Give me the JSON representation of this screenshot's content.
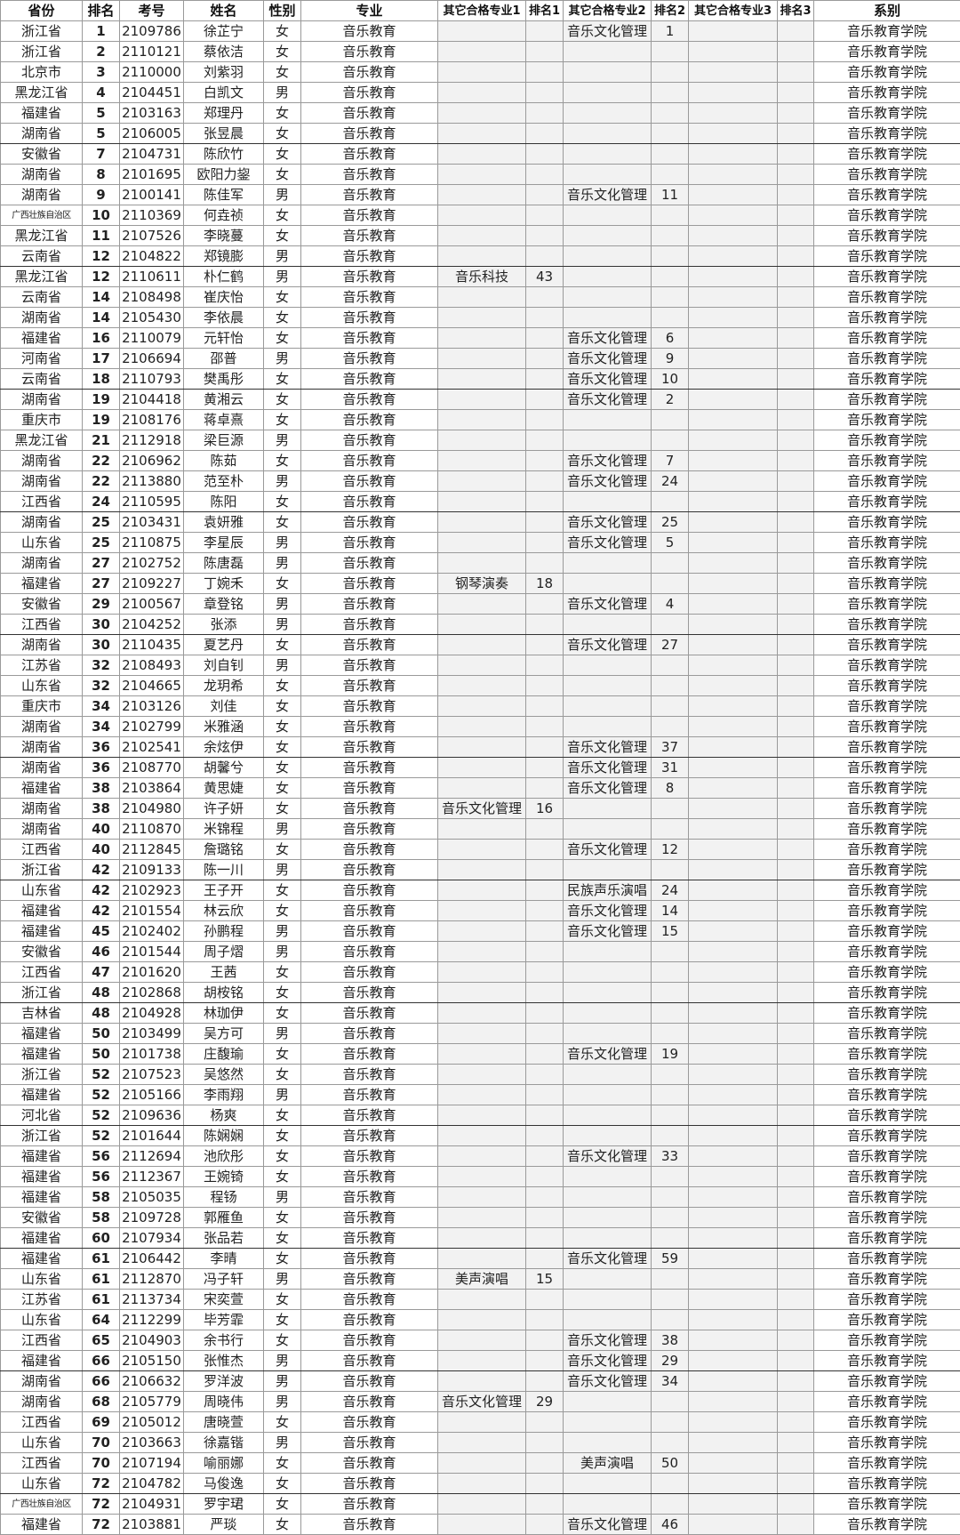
{
  "headers": [
    "省份",
    "排名",
    "考号",
    "姓名",
    "性别",
    "专业",
    "其它合格专业1",
    "排名1",
    "其它合格专业2",
    "排名2",
    "其它合格专业3",
    "排名3",
    "系别"
  ],
  "colors": {
    "grid": "#9a9a9a",
    "gray_cells": "#f2f2f2"
  },
  "rows": [
    [
      "浙江省",
      "1",
      "2109786",
      "徐芷宁",
      "女",
      "音乐教育",
      "",
      "",
      "音乐文化管理",
      "1",
      "",
      "",
      "音乐教育学院"
    ],
    [
      "浙江省",
      "2",
      "2110121",
      "蔡依洁",
      "女",
      "音乐教育",
      "",
      "",
      "",
      "",
      "",
      "",
      "音乐教育学院"
    ],
    [
      "北京市",
      "3",
      "2110000",
      "刘紫羽",
      "女",
      "音乐教育",
      "",
      "",
      "",
      "",
      "",
      "",
      "音乐教育学院"
    ],
    [
      "黑龙江省",
      "4",
      "2104451",
      "白凯文",
      "男",
      "音乐教育",
      "",
      "",
      "",
      "",
      "",
      "",
      "音乐教育学院"
    ],
    [
      "福建省",
      "5",
      "2103163",
      "郑理丹",
      "女",
      "音乐教育",
      "",
      "",
      "",
      "",
      "",
      "",
      "音乐教育学院"
    ],
    [
      "湖南省",
      "5",
      "2106005",
      "张昱晨",
      "女",
      "音乐教育",
      "",
      "",
      "",
      "",
      "",
      "",
      "音乐教育学院"
    ],
    [
      "安徽省",
      "7",
      "2104731",
      "陈欣竹",
      "女",
      "音乐教育",
      "",
      "",
      "",
      "",
      "",
      "",
      "音乐教育学院"
    ],
    [
      "湖南省",
      "8",
      "2101695",
      "欧阳力鋆",
      "女",
      "音乐教育",
      "",
      "",
      "",
      "",
      "",
      "",
      "音乐教育学院"
    ],
    [
      "湖南省",
      "9",
      "2100141",
      "陈佳军",
      "男",
      "音乐教育",
      "",
      "",
      "音乐文化管理",
      "11",
      "",
      "",
      "音乐教育学院"
    ],
    [
      "广西壮族自治区",
      "10",
      "2110369",
      "何垚祯",
      "女",
      "音乐教育",
      "",
      "",
      "",
      "",
      "",
      "",
      "音乐教育学院"
    ],
    [
      "黑龙江省",
      "11",
      "2107526",
      "李晓蔓",
      "女",
      "音乐教育",
      "",
      "",
      "",
      "",
      "",
      "",
      "音乐教育学院"
    ],
    [
      "云南省",
      "12",
      "2104822",
      "郑镜膨",
      "男",
      "音乐教育",
      "",
      "",
      "",
      "",
      "",
      "",
      "音乐教育学院"
    ],
    [
      "黑龙江省",
      "12",
      "2110611",
      "朴仁鹤",
      "男",
      "音乐教育",
      "音乐科技",
      "43",
      "",
      "",
      "",
      "",
      "音乐教育学院"
    ],
    [
      "云南省",
      "14",
      "2108498",
      "崔庆怡",
      "女",
      "音乐教育",
      "",
      "",
      "",
      "",
      "",
      "",
      "音乐教育学院"
    ],
    [
      "湖南省",
      "14",
      "2105430",
      "李依晨",
      "女",
      "音乐教育",
      "",
      "",
      "",
      "",
      "",
      "",
      "音乐教育学院"
    ],
    [
      "福建省",
      "16",
      "2110079",
      "元轩怡",
      "女",
      "音乐教育",
      "",
      "",
      "音乐文化管理",
      "6",
      "",
      "",
      "音乐教育学院"
    ],
    [
      "河南省",
      "17",
      "2106694",
      "邵普",
      "男",
      "音乐教育",
      "",
      "",
      "音乐文化管理",
      "9",
      "",
      "",
      "音乐教育学院"
    ],
    [
      "云南省",
      "18",
      "2110793",
      "樊禹彤",
      "女",
      "音乐教育",
      "",
      "",
      "音乐文化管理",
      "10",
      "",
      "",
      "音乐教育学院"
    ],
    [
      "湖南省",
      "19",
      "2104418",
      "黄湘云",
      "女",
      "音乐教育",
      "",
      "",
      "音乐文化管理",
      "2",
      "",
      "",
      "音乐教育学院"
    ],
    [
      "重庆市",
      "19",
      "2108176",
      "蒋卓熹",
      "女",
      "音乐教育",
      "",
      "",
      "",
      "",
      "",
      "",
      "音乐教育学院"
    ],
    [
      "黑龙江省",
      "21",
      "2112918",
      "梁巨源",
      "男",
      "音乐教育",
      "",
      "",
      "",
      "",
      "",
      "",
      "音乐教育学院"
    ],
    [
      "湖南省",
      "22",
      "2106962",
      "陈茹",
      "女",
      "音乐教育",
      "",
      "",
      "音乐文化管理",
      "7",
      "",
      "",
      "音乐教育学院"
    ],
    [
      "湖南省",
      "22",
      "2113880",
      "范至朴",
      "男",
      "音乐教育",
      "",
      "",
      "音乐文化管理",
      "24",
      "",
      "",
      "音乐教育学院"
    ],
    [
      "江西省",
      "24",
      "2110595",
      "陈阳",
      "女",
      "音乐教育",
      "",
      "",
      "",
      "",
      "",
      "",
      "音乐教育学院"
    ],
    [
      "湖南省",
      "25",
      "2103431",
      "袁妍雅",
      "女",
      "音乐教育",
      "",
      "",
      "音乐文化管理",
      "25",
      "",
      "",
      "音乐教育学院"
    ],
    [
      "山东省",
      "25",
      "2110875",
      "李星辰",
      "男",
      "音乐教育",
      "",
      "",
      "音乐文化管理",
      "5",
      "",
      "",
      "音乐教育学院"
    ],
    [
      "湖南省",
      "27",
      "2102752",
      "陈唐磊",
      "男",
      "音乐教育",
      "",
      "",
      "",
      "",
      "",
      "",
      "音乐教育学院"
    ],
    [
      "福建省",
      "27",
      "2109227",
      "丁婉禾",
      "女",
      "音乐教育",
      "钢琴演奏",
      "18",
      "",
      "",
      "",
      "",
      "音乐教育学院"
    ],
    [
      "安徽省",
      "29",
      "2100567",
      "章登铭",
      "男",
      "音乐教育",
      "",
      "",
      "音乐文化管理",
      "4",
      "",
      "",
      "音乐教育学院"
    ],
    [
      "江西省",
      "30",
      "2104252",
      "张添",
      "男",
      "音乐教育",
      "",
      "",
      "",
      "",
      "",
      "",
      "音乐教育学院"
    ],
    [
      "湖南省",
      "30",
      "2110435",
      "夏艺丹",
      "女",
      "音乐教育",
      "",
      "",
      "音乐文化管理",
      "27",
      "",
      "",
      "音乐教育学院"
    ],
    [
      "江苏省",
      "32",
      "2108493",
      "刘自钊",
      "男",
      "音乐教育",
      "",
      "",
      "",
      "",
      "",
      "",
      "音乐教育学院"
    ],
    [
      "山东省",
      "32",
      "2104665",
      "龙玥希",
      "女",
      "音乐教育",
      "",
      "",
      "",
      "",
      "",
      "",
      "音乐教育学院"
    ],
    [
      "重庆市",
      "34",
      "2103126",
      "刘佳",
      "女",
      "音乐教育",
      "",
      "",
      "",
      "",
      "",
      "",
      "音乐教育学院"
    ],
    [
      "湖南省",
      "34",
      "2102799",
      "米雅涵",
      "女",
      "音乐教育",
      "",
      "",
      "",
      "",
      "",
      "",
      "音乐教育学院"
    ],
    [
      "湖南省",
      "36",
      "2102541",
      "余炫伊",
      "女",
      "音乐教育",
      "",
      "",
      "音乐文化管理",
      "37",
      "",
      "",
      "音乐教育学院"
    ],
    [
      "湖南省",
      "36",
      "2108770",
      "胡馨兮",
      "女",
      "音乐教育",
      "",
      "",
      "音乐文化管理",
      "31",
      "",
      "",
      "音乐教育学院"
    ],
    [
      "福建省",
      "38",
      "2103864",
      "黄思婕",
      "女",
      "音乐教育",
      "",
      "",
      "音乐文化管理",
      "8",
      "",
      "",
      "音乐教育学院"
    ],
    [
      "湖南省",
      "38",
      "2104980",
      "许子妍",
      "女",
      "音乐教育",
      "音乐文化管理",
      "16",
      "",
      "",
      "",
      "",
      "音乐教育学院"
    ],
    [
      "湖南省",
      "40",
      "2110870",
      "米锦程",
      "男",
      "音乐教育",
      "",
      "",
      "",
      "",
      "",
      "",
      "音乐教育学院"
    ],
    [
      "江西省",
      "40",
      "2112845",
      "詹璐铭",
      "女",
      "音乐教育",
      "",
      "",
      "音乐文化管理",
      "12",
      "",
      "",
      "音乐教育学院"
    ],
    [
      "浙江省",
      "42",
      "2109133",
      "陈一川",
      "男",
      "音乐教育",
      "",
      "",
      "",
      "",
      "",
      "",
      "音乐教育学院"
    ],
    [
      "山东省",
      "42",
      "2102923",
      "王子开",
      "女",
      "音乐教育",
      "",
      "",
      "民族声乐演唱",
      "24",
      "",
      "",
      "音乐教育学院"
    ],
    [
      "福建省",
      "42",
      "2101554",
      "林云欣",
      "女",
      "音乐教育",
      "",
      "",
      "音乐文化管理",
      "14",
      "",
      "",
      "音乐教育学院"
    ],
    [
      "福建省",
      "45",
      "2102402",
      "孙鹏程",
      "男",
      "音乐教育",
      "",
      "",
      "音乐文化管理",
      "15",
      "",
      "",
      "音乐教育学院"
    ],
    [
      "安徽省",
      "46",
      "2101544",
      "周子熠",
      "男",
      "音乐教育",
      "",
      "",
      "",
      "",
      "",
      "",
      "音乐教育学院"
    ],
    [
      "江西省",
      "47",
      "2101620",
      "王茜",
      "女",
      "音乐教育",
      "",
      "",
      "",
      "",
      "",
      "",
      "音乐教育学院"
    ],
    [
      "浙江省",
      "48",
      "2102868",
      "胡桉铭",
      "女",
      "音乐教育",
      "",
      "",
      "",
      "",
      "",
      "",
      "音乐教育学院"
    ],
    [
      "吉林省",
      "48",
      "2104928",
      "林珈伊",
      "女",
      "音乐教育",
      "",
      "",
      "",
      "",
      "",
      "",
      "音乐教育学院"
    ],
    [
      "福建省",
      "50",
      "2103499",
      "吴方可",
      "男",
      "音乐教育",
      "",
      "",
      "",
      "",
      "",
      "",
      "音乐教育学院"
    ],
    [
      "福建省",
      "50",
      "2101738",
      "庄馥瑜",
      "女",
      "音乐教育",
      "",
      "",
      "音乐文化管理",
      "19",
      "",
      "",
      "音乐教育学院"
    ],
    [
      "浙江省",
      "52",
      "2107523",
      "吴悠然",
      "女",
      "音乐教育",
      "",
      "",
      "",
      "",
      "",
      "",
      "音乐教育学院"
    ],
    [
      "福建省",
      "52",
      "2105166",
      "李雨翔",
      "男",
      "音乐教育",
      "",
      "",
      "",
      "",
      "",
      "",
      "音乐教育学院"
    ],
    [
      "河北省",
      "52",
      "2109636",
      "杨爽",
      "女",
      "音乐教育",
      "",
      "",
      "",
      "",
      "",
      "",
      "音乐教育学院"
    ],
    [
      "浙江省",
      "52",
      "2101644",
      "陈娴娴",
      "女",
      "音乐教育",
      "",
      "",
      "",
      "",
      "",
      "",
      "音乐教育学院"
    ],
    [
      "福建省",
      "56",
      "2112694",
      "池欣彤",
      "女",
      "音乐教育",
      "",
      "",
      "音乐文化管理",
      "33",
      "",
      "",
      "音乐教育学院"
    ],
    [
      "福建省",
      "56",
      "2112367",
      "王婉锜",
      "女",
      "音乐教育",
      "",
      "",
      "",
      "",
      "",
      "",
      "音乐教育学院"
    ],
    [
      "福建省",
      "58",
      "2105035",
      "程钖",
      "男",
      "音乐教育",
      "",
      "",
      "",
      "",
      "",
      "",
      "音乐教育学院"
    ],
    [
      "安徽省",
      "58",
      "2109728",
      "郭雁鱼",
      "女",
      "音乐教育",
      "",
      "",
      "",
      "",
      "",
      "",
      "音乐教育学院"
    ],
    [
      "福建省",
      "60",
      "2107934",
      "张品若",
      "女",
      "音乐教育",
      "",
      "",
      "",
      "",
      "",
      "",
      "音乐教育学院"
    ],
    [
      "福建省",
      "61",
      "2106442",
      "李晴",
      "女",
      "音乐教育",
      "",
      "",
      "音乐文化管理",
      "59",
      "",
      "",
      "音乐教育学院"
    ],
    [
      "山东省",
      "61",
      "2112870",
      "冯子轩",
      "男",
      "音乐教育",
      "美声演唱",
      "15",
      "",
      "",
      "",
      "",
      "音乐教育学院"
    ],
    [
      "江苏省",
      "61",
      "2113734",
      "宋奕萱",
      "女",
      "音乐教育",
      "",
      "",
      "",
      "",
      "",
      "",
      "音乐教育学院"
    ],
    [
      "山东省",
      "64",
      "2112299",
      "毕芳霏",
      "女",
      "音乐教育",
      "",
      "",
      "",
      "",
      "",
      "",
      "音乐教育学院"
    ],
    [
      "江西省",
      "65",
      "2104903",
      "余书行",
      "女",
      "音乐教育",
      "",
      "",
      "音乐文化管理",
      "38",
      "",
      "",
      "音乐教育学院"
    ],
    [
      "福建省",
      "66",
      "2105150",
      "张惟杰",
      "男",
      "音乐教育",
      "",
      "",
      "音乐文化管理",
      "29",
      "",
      "",
      "音乐教育学院"
    ],
    [
      "湖南省",
      "66",
      "2106632",
      "罗洋波",
      "男",
      "音乐教育",
      "",
      "",
      "音乐文化管理",
      "34",
      "",
      "",
      "音乐教育学院"
    ],
    [
      "湖南省",
      "68",
      "2105779",
      "周晓伟",
      "男",
      "音乐教育",
      "音乐文化管理",
      "29",
      "",
      "",
      "",
      "",
      "音乐教育学院"
    ],
    [
      "江西省",
      "69",
      "2105012",
      "唐晓萱",
      "女",
      "音乐教育",
      "",
      "",
      "",
      "",
      "",
      "",
      "音乐教育学院"
    ],
    [
      "山东省",
      "70",
      "2103663",
      "徐嘉锴",
      "男",
      "音乐教育",
      "",
      "",
      "",
      "",
      "",
      "",
      "音乐教育学院"
    ],
    [
      "江西省",
      "70",
      "2107194",
      "喻丽娜",
      "女",
      "音乐教育",
      "",
      "",
      "美声演唱",
      "50",
      "",
      "",
      "音乐教育学院"
    ],
    [
      "山东省",
      "72",
      "2104782",
      "马俊逸",
      "女",
      "音乐教育",
      "",
      "",
      "",
      "",
      "",
      "",
      "音乐教育学院"
    ],
    [
      "广西壮族自治区",
      "72",
      "2104931",
      "罗宇珺",
      "女",
      "音乐教育",
      "",
      "",
      "",
      "",
      "",
      "",
      "音乐教育学院"
    ],
    [
      "福建省",
      "72",
      "2103881",
      "严琰",
      "女",
      "音乐教育",
      "",
      "",
      "音乐文化管理",
      "46",
      "",
      "",
      "音乐教育学院"
    ]
  ]
}
